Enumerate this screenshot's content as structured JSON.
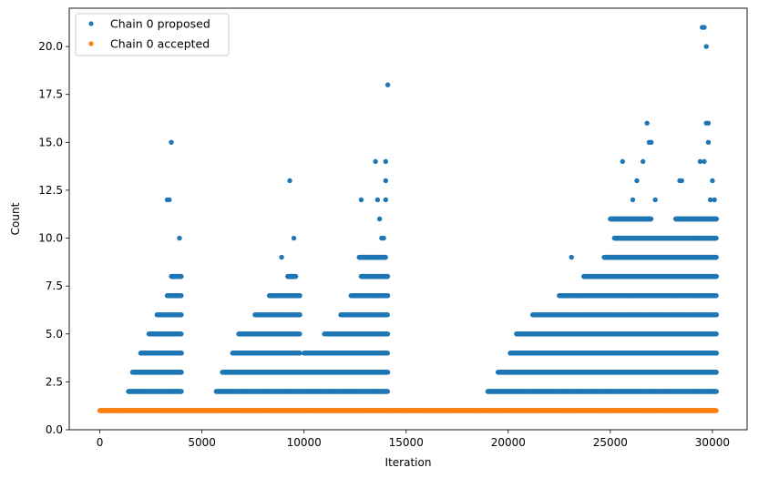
{
  "chart_data": {
    "type": "scatter",
    "title": "",
    "xlabel": "Iteration",
    "ylabel": "Count",
    "xlim": [
      -1500,
      31700
    ],
    "ylim": [
      0,
      22
    ],
    "xticks": [
      0,
      5000,
      10000,
      15000,
      20000,
      25000,
      30000
    ],
    "xtick_labels": [
      "0",
      "5000",
      "10000",
      "15000",
      "20000",
      "25000",
      "30000"
    ],
    "yticks": [
      0,
      2.5,
      5,
      7.5,
      10,
      12.5,
      15,
      17.5,
      20
    ],
    "ytick_labels": [
      "0.0",
      "2.5",
      "5.0",
      "7.5",
      "10.0",
      "12.5",
      "15.0",
      "17.5",
      "20.0"
    ],
    "grid": false,
    "legend_position": "top-left",
    "series": [
      {
        "name": "Chain 0 proposed",
        "color": "#1f77b4",
        "baseline": {
          "y": 1,
          "x_range": [
            0,
            30200
          ]
        },
        "bands": [
          {
            "y": 2,
            "ranges": [
              [
                1400,
                4000
              ],
              [
                5700,
                14100
              ],
              [
                19000,
                30200
              ]
            ]
          },
          {
            "y": 3,
            "ranges": [
              [
                1600,
                4000
              ],
              [
                6000,
                14100
              ],
              [
                19500,
                30200
              ]
            ]
          },
          {
            "y": 4,
            "ranges": [
              [
                2000,
                4000
              ],
              [
                6500,
                9800
              ],
              [
                10000,
                14100
              ],
              [
                20100,
                30200
              ]
            ]
          },
          {
            "y": 5,
            "ranges": [
              [
                2400,
                4000
              ],
              [
                6800,
                9800
              ],
              [
                11000,
                14100
              ],
              [
                20400,
                30200
              ]
            ]
          },
          {
            "y": 6,
            "ranges": [
              [
                2800,
                4000
              ],
              [
                7600,
                9800
              ],
              [
                11800,
                14100
              ],
              [
                21200,
                30200
              ]
            ]
          },
          {
            "y": 7,
            "ranges": [
              [
                3300,
                4000
              ],
              [
                8300,
                9800
              ],
              [
                12300,
                14100
              ],
              [
                22500,
                30200
              ]
            ]
          },
          {
            "y": 8,
            "ranges": [
              [
                3500,
                4000
              ],
              [
                9200,
                9600
              ],
              [
                12800,
                14100
              ],
              [
                23700,
                30200
              ]
            ]
          },
          {
            "y": 9,
            "ranges": [
              [
                12700,
                14000
              ],
              [
                24700,
                30200
              ]
            ]
          },
          {
            "y": 10,
            "ranges": [
              [
                25200,
                30200
              ]
            ]
          },
          {
            "y": 11,
            "ranges": [
              [
                25000,
                27000
              ],
              [
                28200,
                30200
              ]
            ]
          }
        ],
        "points": [
          {
            "x": 3500,
            "y": 15
          },
          {
            "x": 3300,
            "y": 12
          },
          {
            "x": 3400,
            "y": 12
          },
          {
            "x": 3900,
            "y": 10
          },
          {
            "x": 8900,
            "y": 9
          },
          {
            "x": 9300,
            "y": 13
          },
          {
            "x": 9500,
            "y": 10
          },
          {
            "x": 12800,
            "y": 12
          },
          {
            "x": 13500,
            "y": 14
          },
          {
            "x": 13600,
            "y": 12
          },
          {
            "x": 13700,
            "y": 11
          },
          {
            "x": 13800,
            "y": 10
          },
          {
            "x": 13900,
            "y": 10
          },
          {
            "x": 14000,
            "y": 14
          },
          {
            "x": 14000,
            "y": 13
          },
          {
            "x": 14000,
            "y": 12
          },
          {
            "x": 14100,
            "y": 18
          },
          {
            "x": 23100,
            "y": 9
          },
          {
            "x": 25600,
            "y": 14
          },
          {
            "x": 26100,
            "y": 12
          },
          {
            "x": 26300,
            "y": 13
          },
          {
            "x": 26600,
            "y": 14
          },
          {
            "x": 26800,
            "y": 16
          },
          {
            "x": 26900,
            "y": 15
          },
          {
            "x": 27000,
            "y": 15
          },
          {
            "x": 27200,
            "y": 12
          },
          {
            "x": 28400,
            "y": 13
          },
          {
            "x": 28500,
            "y": 13
          },
          {
            "x": 29400,
            "y": 14
          },
          {
            "x": 29600,
            "y": 14
          },
          {
            "x": 29500,
            "y": 21
          },
          {
            "x": 29600,
            "y": 21
          },
          {
            "x": 29700,
            "y": 20
          },
          {
            "x": 29700,
            "y": 16
          },
          {
            "x": 29800,
            "y": 16
          },
          {
            "x": 29800,
            "y": 15
          },
          {
            "x": 30000,
            "y": 13
          },
          {
            "x": 30100,
            "y": 12
          },
          {
            "x": 29900,
            "y": 12
          }
        ]
      },
      {
        "name": "Chain 0 accepted",
        "color": "#ff7f0e",
        "baseline": {
          "y": 1,
          "x_range": [
            0,
            30200
          ]
        }
      }
    ]
  }
}
